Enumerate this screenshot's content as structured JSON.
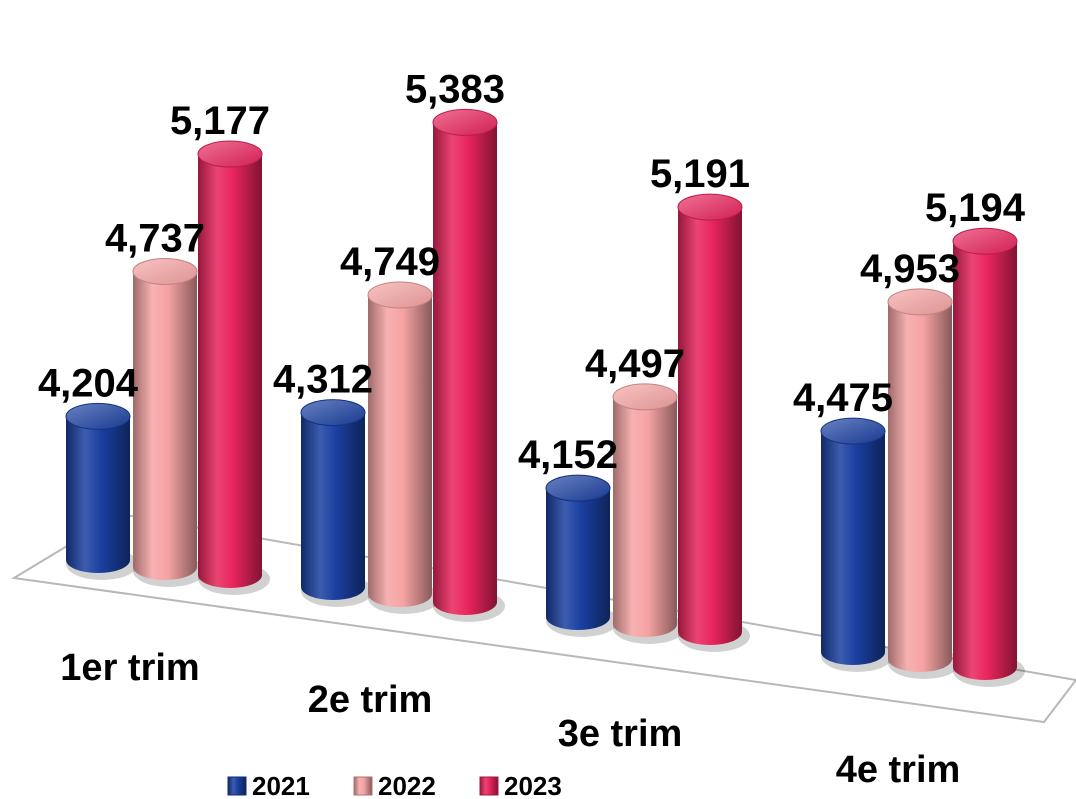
{
  "chart_data": {
    "type": "bar",
    "style": "3d-cylinder",
    "categories": [
      "1er trim",
      "2e trim",
      "3e trim",
      "4e trim"
    ],
    "series": [
      {
        "name": "2021",
        "values": [
          4204,
          4312,
          4152,
          4475
        ],
        "labels": [
          "4,204",
          "4,312",
          "4,152",
          "4,475"
        ],
        "color": "#1a3fa0"
      },
      {
        "name": "2022",
        "values": [
          4737,
          4749,
          4497,
          4953
        ],
        "labels": [
          "4,737",
          "4,749",
          "4,497",
          "4,953"
        ],
        "color": "#f5a3a3"
      },
      {
        "name": "2023",
        "values": [
          5177,
          5383,
          5191,
          5194
        ],
        "labels": [
          "5,177",
          "5,383",
          "5,191",
          "5,194"
        ],
        "color": "#e8245c"
      }
    ],
    "title": "",
    "xlabel": "",
    "ylabel": "",
    "ylim": [
      3700,
      5500
    ],
    "grid": false,
    "legend": "bottom-left"
  }
}
